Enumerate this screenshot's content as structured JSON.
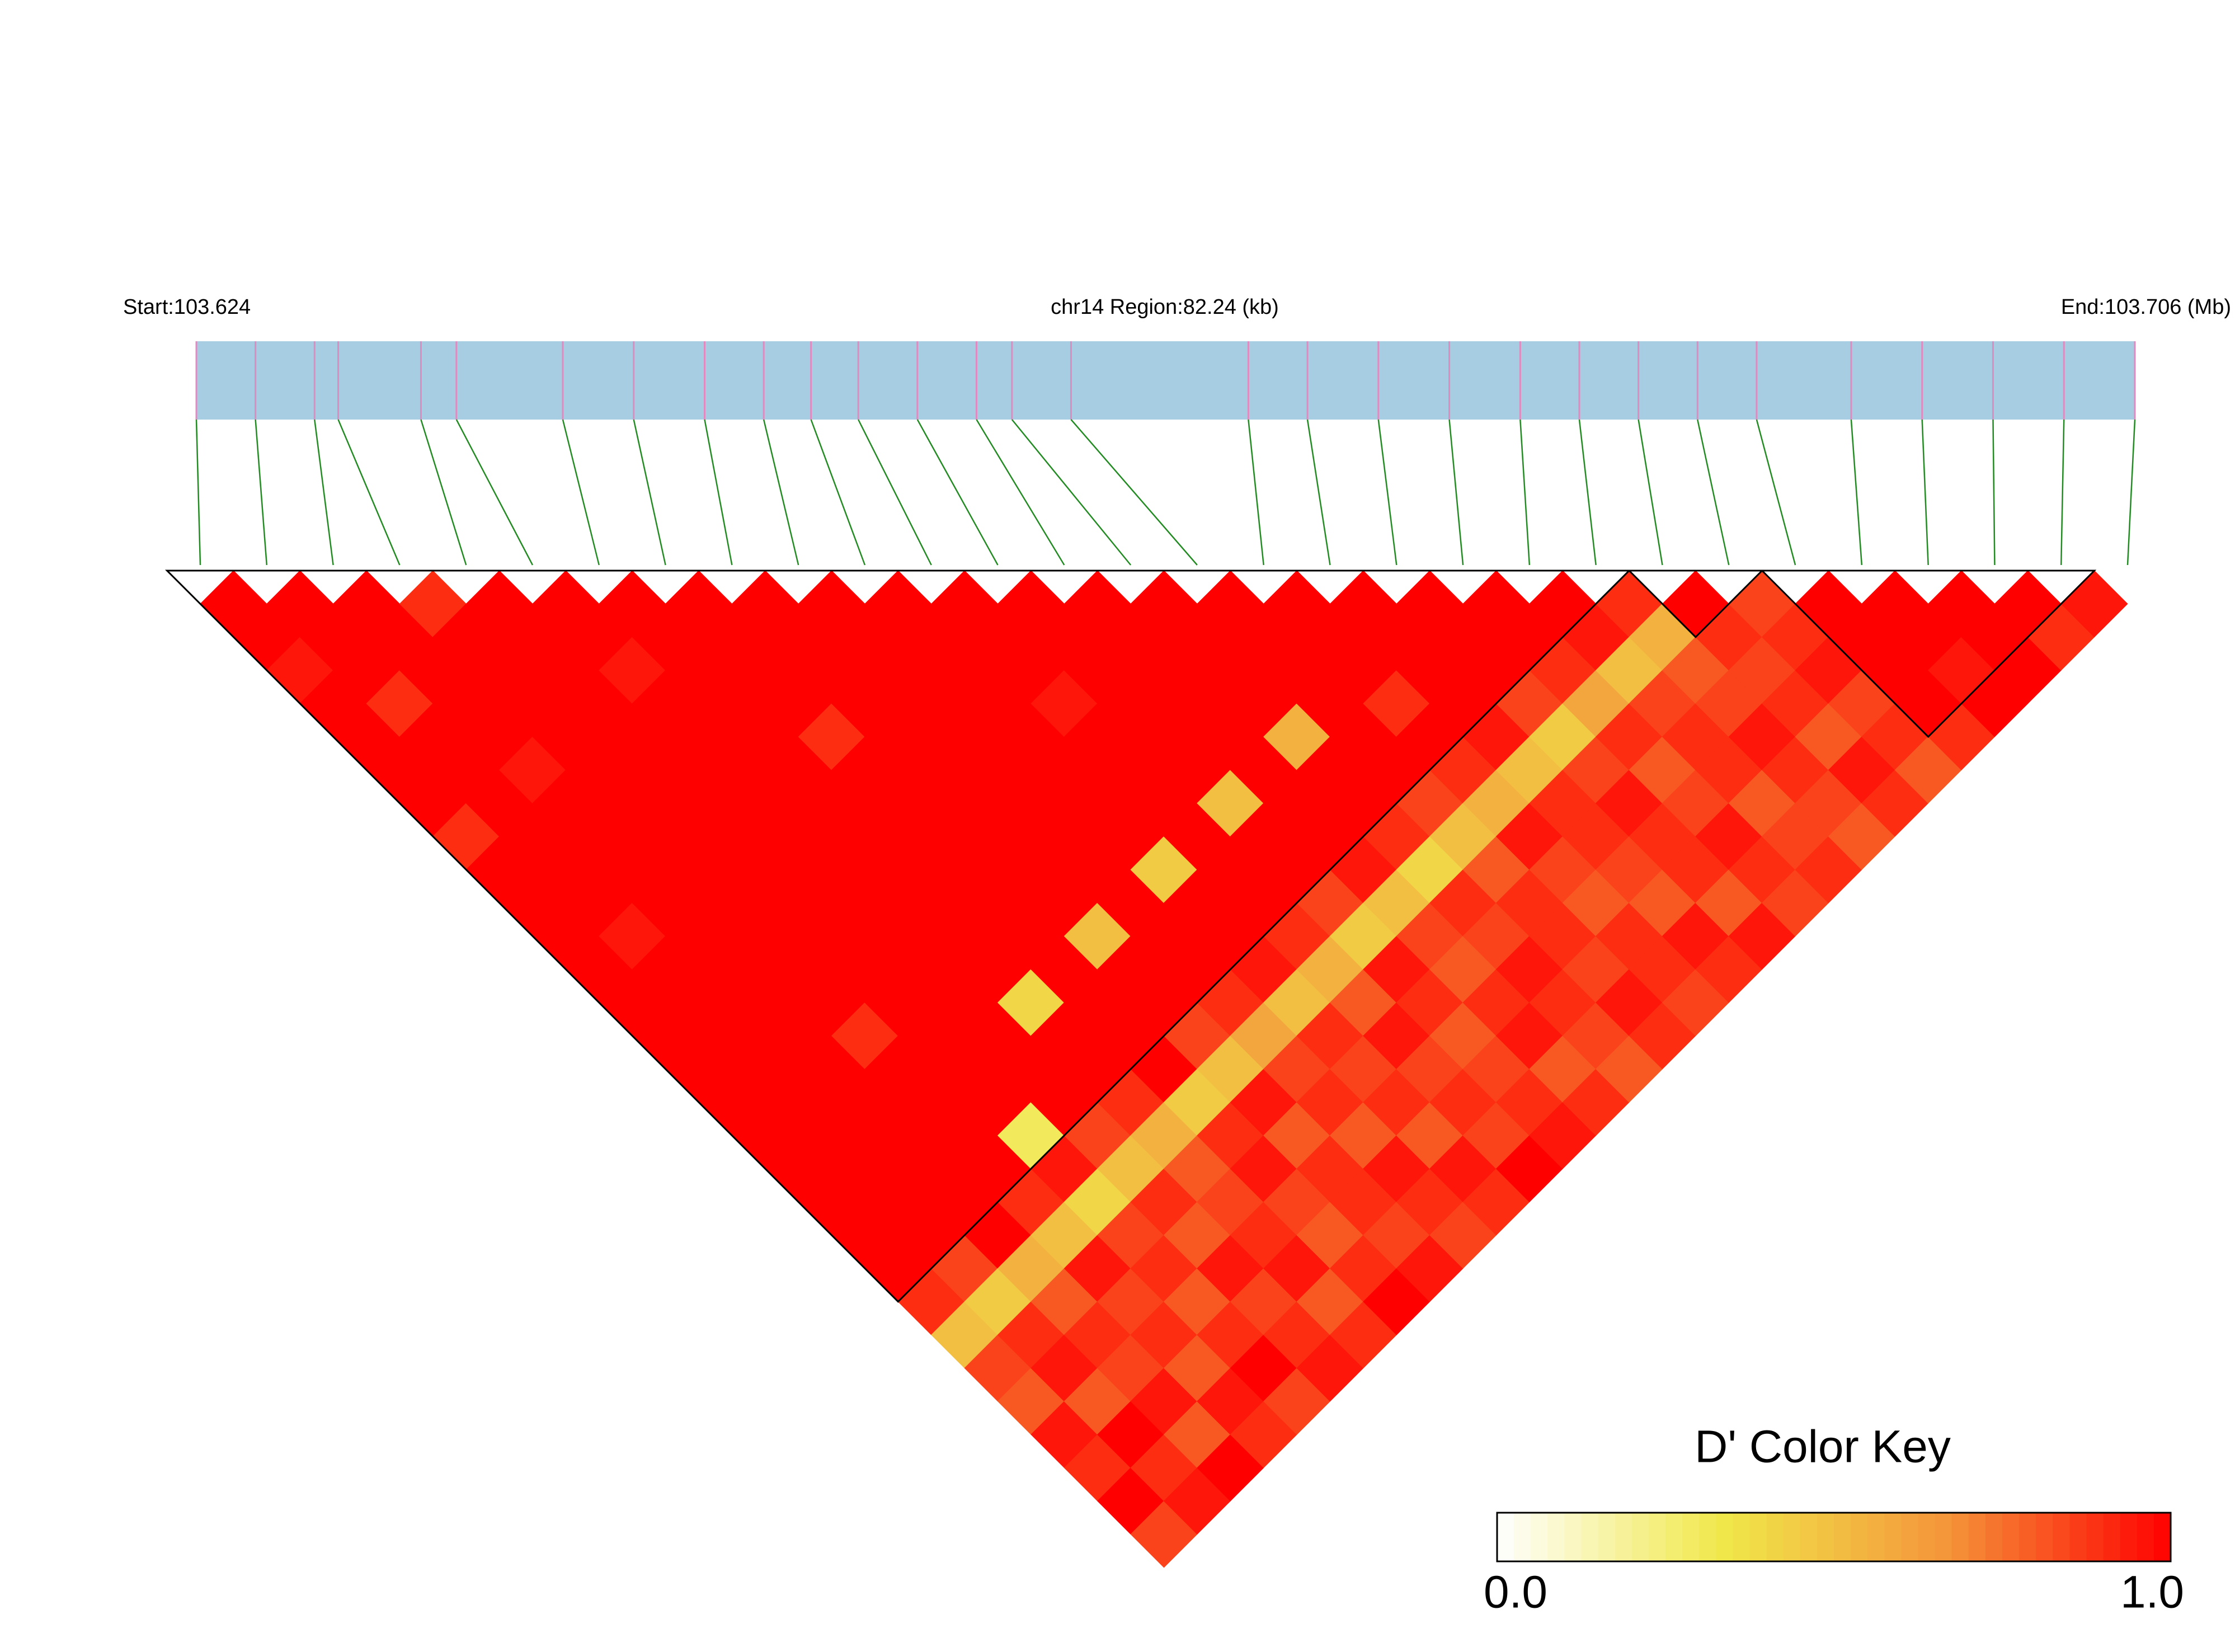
{
  "chart_data": {
    "type": "ld-heatmap",
    "header": {
      "start": "Start:103.624",
      "region": "chr14 Region:82.24 (kb)",
      "end": "End:103.706 (Mb)"
    },
    "xlim": [
      103.624,
      103.706
    ],
    "positions": [
      103.624,
      103.6265,
      103.629,
      103.63,
      103.6335,
      103.635,
      103.6395,
      103.6425,
      103.6455,
      103.648,
      103.65,
      103.652,
      103.6545,
      103.657,
      103.6585,
      103.661,
      103.6685,
      103.671,
      103.674,
      103.677,
      103.68,
      103.6825,
      103.685,
      103.6875,
      103.69,
      103.694,
      103.697,
      103.7,
      103.703,
      103.706
    ],
    "dprime": [
      [
        1,
        1,
        0.95,
        1,
        1,
        1,
        1,
        0.9,
        1,
        1,
        1,
        1,
        1,
        1,
        1,
        1,
        1,
        1,
        1,
        1,
        1,
        0.9,
        0.5,
        0.85,
        0.8,
        0.95,
        0.9,
        1,
        0.85
      ],
      [
        1,
        1,
        1,
        0.9,
        1,
        1,
        1,
        1,
        1,
        1,
        0.95,
        1,
        1,
        1,
        1,
        1,
        1,
        1,
        1,
        1,
        0.85,
        0.45,
        0.9,
        0.95,
        0.8,
        1,
        0.9,
        0.95
      ],
      [
        1,
        1,
        1,
        1,
        1,
        0.95,
        1,
        1,
        1,
        1,
        1,
        1,
        1,
        1,
        1,
        1,
        1,
        1,
        1,
        1,
        0.55,
        0.8,
        0.9,
        0.85,
        0.95,
        0.8,
        1
      ],
      [
        0.9,
        1,
        1,
        1,
        1,
        1,
        1,
        1,
        1,
        1,
        1,
        1,
        1,
        0.9,
        1,
        1,
        1,
        1,
        0.9,
        0.5,
        0.95,
        0.85,
        0.9,
        0.8,
        0.95,
        0.9
      ],
      [
        1,
        1,
        1,
        1,
        1,
        1,
        1,
        1,
        1,
        1,
        1,
        1,
        1,
        1,
        1,
        1,
        0.3,
        0.95,
        0.4,
        0.85,
        0.9,
        0.8,
        0.9,
        1,
        0.85
      ],
      [
        1,
        1,
        0.95,
        1,
        1,
        1,
        1,
        1,
        1,
        1,
        1,
        1,
        1,
        1,
        1,
        1,
        0.85,
        0.5,
        0.9,
        0.8,
        0.95,
        0.85,
        0.9,
        0.95
      ],
      [
        1,
        1,
        1,
        1,
        1,
        1,
        1,
        1,
        1,
        1,
        1,
        1,
        0.4,
        1,
        1,
        0.9,
        0.55,
        0.8,
        0.85,
        0.9,
        0.95,
        0.8,
        0.9
      ],
      [
        1,
        1,
        1,
        1,
        0.9,
        1,
        1,
        1,
        1,
        1,
        1,
        1,
        1,
        1,
        1,
        0.45,
        0.9,
        0.95,
        0.85,
        0.8,
        0.9,
        1
      ],
      [
        1,
        1,
        1,
        1,
        1,
        1,
        1,
        1,
        1,
        1,
        0.5,
        1,
        1,
        0.85,
        0.5,
        0.95,
        0.8,
        0.9,
        0.9,
        0.85,
        0.95
      ],
      [
        1,
        1,
        1,
        1,
        1,
        1,
        1,
        1,
        1,
        1,
        1,
        1,
        0.9,
        0.6,
        0.85,
        0.9,
        0.8,
        0.95,
        0.9,
        0.85
      ],
      [
        1,
        1,
        1,
        1,
        1,
        1,
        1,
        1,
        0.45,
        1,
        1,
        0.95,
        0.5,
        0.9,
        0.85,
        0.9,
        0.8,
        0.95,
        0.9
      ],
      [
        1,
        1,
        1,
        0.95,
        1,
        1,
        1,
        1,
        1,
        1,
        0.9,
        0.55,
        0.8,
        0.95,
        0.85,
        0.9,
        0.85,
        1
      ],
      [
        1,
        1,
        1,
        1,
        1,
        1,
        0.5,
        1,
        1,
        0.85,
        0.45,
        0.95,
        0.9,
        0.8,
        0.85,
        0.9,
        0.95
      ],
      [
        1,
        1,
        1,
        1,
        1,
        1,
        1,
        1,
        0.95,
        0.5,
        0.85,
        0.8,
        0.9,
        0.95,
        0.8,
        0.9
      ],
      [
        1,
        1,
        1,
        1,
        0.55,
        1,
        1,
        0.9,
        0.4,
        0.9,
        0.85,
        0.95,
        0.9,
        0.85,
        0.8
      ],
      [
        1,
        1,
        1,
        1,
        1,
        1,
        0.85,
        0.5,
        0.8,
        0.9,
        0.9,
        0.85,
        0.95,
        0.9
      ],
      [
        1,
        1,
        1,
        0.9,
        1,
        0.9,
        0.55,
        0.95,
        0.85,
        0.8,
        0.9,
        0.9,
        0.85
      ],
      [
        1,
        1,
        1,
        1,
        0.95,
        0.5,
        0.9,
        0.9,
        0.85,
        0.8,
        0.95,
        0.9
      ],
      [
        1,
        1,
        1,
        0.85,
        0.45,
        0.85,
        0.95,
        0.9,
        0.9,
        0.8,
        0.95
      ],
      [
        1,
        1,
        0.9,
        0.6,
        0.9,
        0.8,
        0.85,
        0.95,
        0.9,
        0.85
      ],
      [
        1,
        0.95,
        0.5,
        0.85,
        0.9,
        0.9,
        0.8,
        0.85,
        0.9
      ],
      [
        0.9,
        0.55,
        0.8,
        0.85,
        0.95,
        0.9,
        0.85,
        0.8
      ],
      [
        1,
        0.9,
        0.85,
        0.9,
        0.8,
        0.95,
        0.9
      ],
      [
        0.85,
        0.9,
        0.95,
        0.85,
        0.9,
        0.8
      ],
      [
        1,
        1,
        1,
        1,
        0.9
      ],
      [
        1,
        1,
        0.95,
        1
      ],
      [
        1,
        1,
        1
      ],
      [
        1,
        0.9
      ],
      [
        0.95
      ]
    ],
    "blocks": [
      [
        0,
        21
      ],
      [
        22,
        23
      ],
      [
        24,
        28
      ]
    ],
    "bar_color": "#a6cde1",
    "snp_color": "#e08ac0",
    "connector_color": "#228b22",
    "colorscale": [
      "#ffffff",
      "#f0e84a",
      "#f4953a",
      "#ff0000"
    ],
    "colorkey": {
      "title": "D' Color Key",
      "lim": [
        0,
        1
      ],
      "ticks": [
        {
          "value": 0,
          "label": "0.0"
        },
        {
          "value": 1,
          "label": "1.0"
        }
      ]
    }
  }
}
